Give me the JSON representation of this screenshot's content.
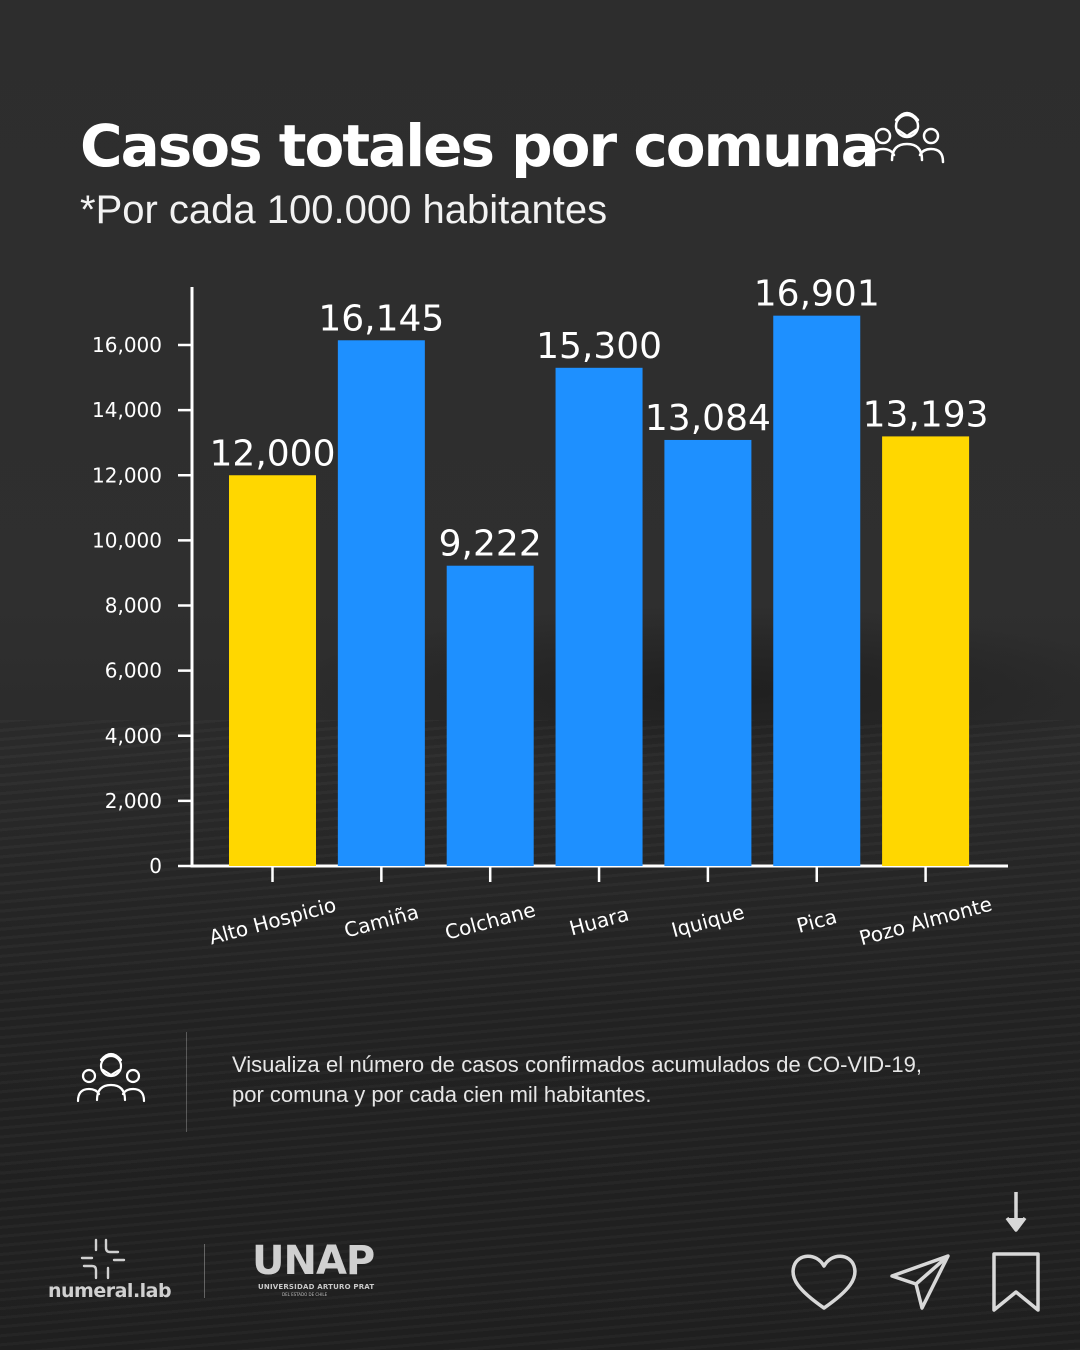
{
  "header": {
    "title": "Casos totales por comuna",
    "subtitle_prefix": "*Por cada ",
    "subtitle_number": "100.000",
    "subtitle_suffix": " habitantes"
  },
  "chart_data": {
    "type": "bar",
    "categories": [
      "Alto Hospicio",
      "Camiña",
      "Colchane",
      "Huara",
      "Iquique",
      "Pica",
      "Pozo Almonte"
    ],
    "values": [
      12000,
      16145,
      9222,
      15300,
      13084,
      16901,
      13193
    ],
    "data_labels": [
      "12,000",
      "16,145",
      "9,222",
      "15,300",
      "13,084",
      "16,901",
      "13,193"
    ],
    "bar_colors": [
      "#FFD700",
      "#1E90FF",
      "#1E90FF",
      "#1E90FF",
      "#1E90FF",
      "#1E90FF",
      "#FFD700"
    ],
    "ylim": [
      0,
      16000
    ],
    "yticks": [
      0,
      2000,
      4000,
      6000,
      8000,
      10000,
      12000,
      14000,
      16000
    ],
    "ytick_labels": [
      "0",
      "2,000",
      "4,000",
      "6,000",
      "8,000",
      "10,000",
      "12,000",
      "14,000",
      "16,000"
    ],
    "grid": false,
    "xlabel": "",
    "ylabel": ""
  },
  "note": {
    "text": "Visualiza el número de casos confirmados acumulados de CO-VID-19, por comuna y por cada cien mil habitantes."
  },
  "footer": {
    "brand": "numeral.lab",
    "logo_text": "UNAP",
    "logo_subtitle": "UNIVERSIDAD ARTURO PRAT",
    "logo_subtitle2": "DEL ESTADO DE CHILE",
    "actions": [
      "heart-icon",
      "send-icon",
      "bookmark-icon",
      "arrow-down-icon"
    ]
  },
  "colors": {
    "yellow": "#FFD700",
    "blue": "#1E90FF",
    "background": "#2c2c2c",
    "text": "#ffffff"
  }
}
